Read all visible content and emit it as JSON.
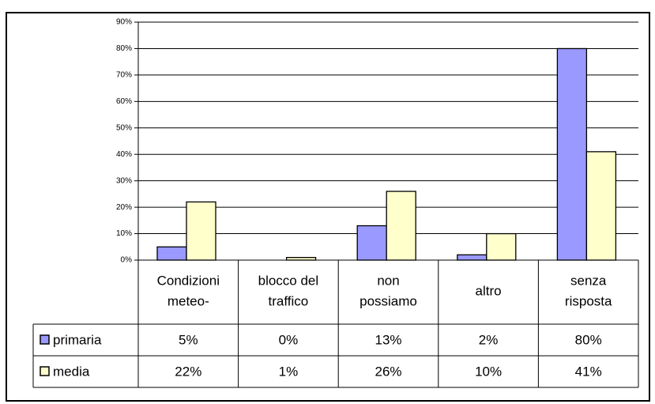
{
  "chart_data": {
    "type": "bar",
    "categories": [
      "Condizioni\nmeteo-",
      "blocco del\ntraffico",
      "non\npossiamo",
      "altro",
      "senza\nrisposta"
    ],
    "series": [
      {
        "name": "primaria",
        "color": "#9999ff",
        "values": [
          5,
          0,
          13,
          2,
          80
        ],
        "value_labels": [
          "5%",
          "0%",
          "13%",
          "2%",
          "80%"
        ]
      },
      {
        "name": "media",
        "color": "#ffffcc",
        "values": [
          22,
          1,
          26,
          10,
          41
        ],
        "value_labels": [
          "22%",
          "1%",
          "26%",
          "10%",
          "41%"
        ]
      }
    ],
    "ylim": [
      0,
      90
    ],
    "yticks": [
      {
        "value": 0,
        "label": "0%"
      },
      {
        "value": 10,
        "label": "10%"
      },
      {
        "value": 20,
        "label": "20%"
      },
      {
        "value": 30,
        "label": "30%"
      },
      {
        "value": 40,
        "label": "40%"
      },
      {
        "value": 50,
        "label": "50%"
      },
      {
        "value": 60,
        "label": "60%"
      },
      {
        "value": 70,
        "label": "70%"
      },
      {
        "value": 80,
        "label": "80%"
      },
      {
        "value": 90,
        "label": "90%"
      }
    ],
    "grid": true
  }
}
